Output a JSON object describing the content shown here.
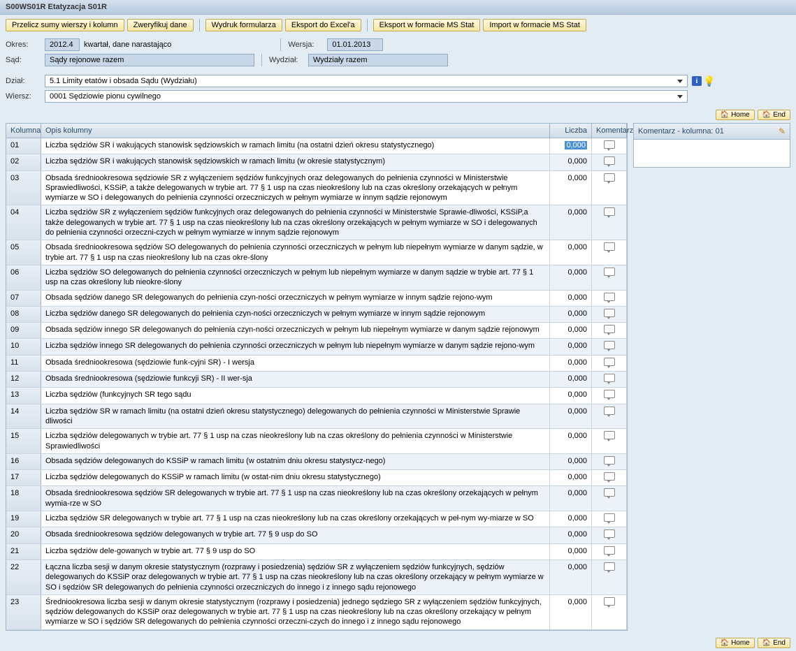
{
  "title": "S00WS01R Etatyzacja S01R",
  "toolbar": {
    "btn1": "Przelicz sumy wierszy i kolumn",
    "btn2": "Zweryfikuj dane",
    "btn3": "Wydruk formularza",
    "btn4": "Eksport do Excel'a",
    "btn5": "Eksport w formacie MS Stat",
    "btn6": "Import w formacie MS Stat"
  },
  "form": {
    "okres_label": "Okres:",
    "okres_val": "2012.4",
    "okres_suffix": "kwartał, dane narastająco",
    "wersja_label": "Wersja:",
    "wersja_val": "01.01.2013",
    "sad_label": "Sąd:",
    "sad_val": "Sądy rejonowe razem",
    "wydzial_label": "Wydział:",
    "wydzial_val": "Wydziały razem",
    "dzial_label": "Dział:",
    "dzial_val": "5.1 Limity etatów i obsada Sądu (Wydziału)",
    "wiersz_label": "Wiersz:",
    "wiersz_val": "0001 Sędziowie pionu cywilnego"
  },
  "nav": {
    "home": "Home",
    "end": "End"
  },
  "grid": {
    "h_kol": "Kolumna",
    "h_opis": "Opis kolumny",
    "h_licz": "Liczba",
    "h_kom": "Komentarz",
    "rows": [
      {
        "k": "01",
        "o": "Liczba sędziów SR i wakujących stanowisk sędziowskich w ramach limitu (na ostatni dzień okresu statystycznego)",
        "l": "0,000",
        "first": true
      },
      {
        "k": "02",
        "o": "Liczba sędziów SR i wakujących stanowisk sędziowskich w ramach limitu (w okresie statystycznym)",
        "l": "0,000"
      },
      {
        "k": "03",
        "o": "Obsada średniookresowa sędziowie SR z wyłączeniem sędziów funkcyjnych oraz delegowanych do pełnienia czynności w Ministerstwie Sprawiedliwości, KSSiP, a także delegowanych w trybie art. 77 § 1 usp na czas nieokreślony lub na czas określony orzekających w pełnym wymiarze w SO i delegowanych do pełnienia czynności orzeczniczych w pełnym wymiarze w innym sądzie rejonowym",
        "l": "0,000"
      },
      {
        "k": "04",
        "o": "Liczba sędziów SR z wyłączeniem sędziów funkcyjnych oraz delegowanych do pełnienia czynności w Ministerstwie Sprawie-dliwości, KSSiP,a także delegowanych w trybie art. 77 § 1 usp na czas nieokreślony lub na czas określony orzekających w pełnym wymiarze w SO i delegowanych do pełnienia czynności orzeczni-czych w pełnym wymiarze w innym sądzie rejonowym",
        "l": "0,000"
      },
      {
        "k": "05",
        "o": "Obsada średniookresowa sędziów SO delegowanych do pełnienia czynności orzeczniczych w pełnym lub niepełnym wymiarze w danym sądzie, w trybie art. 77 § 1 usp na czas nieokreślony lub na czas okre-ślony",
        "l": "0,000"
      },
      {
        "k": "06",
        "o": "Liczba sędziów SO delegowanych do pełnienia czynności orzeczniczych w pełnym lub niepełnym wymiarze w danym sądzie w trybie art. 77 § 1 usp na czas określony lub nieokre-ślony",
        "l": "0,000"
      },
      {
        "k": "07",
        "o": "Obsada sędziów danego SR delegowanych do pełnienia czyn-ności orzeczniczych w pełnym wymiarze w innym sądzie rejono-wym",
        "l": "0,000"
      },
      {
        "k": "08",
        "o": "Liczba sędziów danego SR delegowanych do pełnienia czyn-ności orzeczniczych w pełnym wymiarze w innym sądzie rejonowym",
        "l": "0,000"
      },
      {
        "k": "09",
        "o": "Obsada sędziów innego SR delegowanych do pełnienia czyn-ności orzeczniczych w pełnym lub niepełnym wymiarze w danym sądzie rejonowym",
        "l": "0,000"
      },
      {
        "k": "10",
        "o": "Liczba sędziów innego SR delegowanych do pełnienia czynności orzeczniczych w pełnym lub niepełnym wymiarze w danym sądzie rejono-wym",
        "l": "0,000"
      },
      {
        "k": "11",
        "o": "Obsada średniookresowa (sędziowie funk-cyjni SR) - I wersja",
        "l": "0,000"
      },
      {
        "k": "12",
        "o": "Obsada średniookresowa (sędziowie funkcyji SR) - II wer-sja",
        "l": "0,000"
      },
      {
        "k": "13",
        "o": "Liczba sędziów (funkcyjnych SR tego sądu",
        "l": "0,000"
      },
      {
        "k": "14",
        "o": "Liczba sędziów SR w ramach limitu (na ostatni dzień okresu statystycznego) delegowanych do pełnienia czynności w Ministerstwie Sprawie dliwości",
        "l": "0,000"
      },
      {
        "k": "15",
        "o": "Liczba sędziów delegowanych w trybie art. 77 § 1 usp na czas nieokreślony lub na czas określony do pełnienia czynności w Ministerstwie Sprawiedliwości",
        "l": "0,000"
      },
      {
        "k": "16",
        "o": "Obsada sędziów delegowanych do KSSiP w ramach limitu (w ostatnim dniu okresu statystycz-nego)",
        "l": "0,000"
      },
      {
        "k": "17",
        "o": "Liczba sędziów delegowanych do KSSiP w ramach limitu (w ostat-nim dniu okresu statystycznego)",
        "l": "0,000"
      },
      {
        "k": "18",
        "o": "Obsada średniookresowa sędziów SR delegowanych w trybie art. 77 § 1 usp na czas nieokreślony lub na czas określony orzekających w pełnym wymia-rze w SO",
        "l": "0,000"
      },
      {
        "k": "19",
        "o": "Liczba sędziów SR delegowanych w trybie art. 77 § 1 usp na czas nieokreślony lub na czas określony orzekających w peł-nym wy-miarze w SO",
        "l": "0,000"
      },
      {
        "k": "20",
        "o": "Obsada średniookresowa sędziów delegowanych w trybie art. 77 § 9 usp do SO",
        "l": "0,000"
      },
      {
        "k": "21",
        "o": "Liczba sędziów dele-gowanych w trybie art. 77 § 9 usp do SO",
        "l": "0,000"
      },
      {
        "k": "22",
        "o": "Łączna liczba sesji w danym okresie statystycznym (rozprawy i posiedzenia) sędziów SR z wyłączeniem sędziów funkcyjnych, sędziów delegowanych do KSSiP oraz delegowanych w trybie art. 77 § 1 usp na czas nieokreślony lub na czas określony orzekający w pełnym wymiarze w SO i sędziów SR delegowanych do pełnienia czynności orzeczniczych do innego i z innego sądu rejonowego",
        "l": "0,000"
      },
      {
        "k": "23",
        "o": "Średniookresowa liczba sesji w danym okresie statystycznym (rozprawy i posiedzenia) jednego sędziego SR z wyłączeniem sędziów funkcyjnych, sędziów delegowanych do KSSiP oraz delegowanych w trybie art. 77 § 1 usp na czas nieokreślony lub na czas określony orzekający w pełnym wymiarze w SO i sędziów SR delegowanych do pełnienia czynności orzeczni-czych do innego i z innego sądu rejonowego",
        "l": "0,000"
      }
    ]
  },
  "side": {
    "header": "Komentarz - kolumna: 01"
  }
}
